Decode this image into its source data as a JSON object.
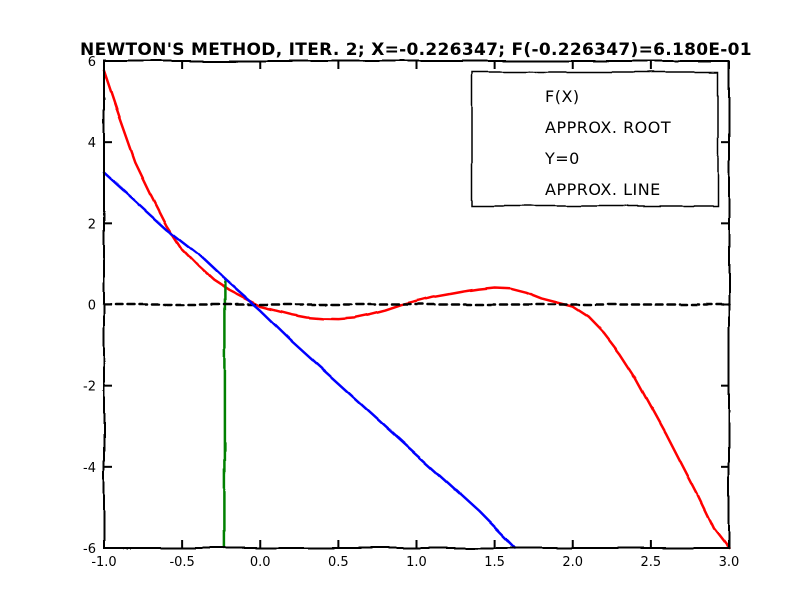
{
  "chart_data": {
    "type": "line",
    "title": "NEWTON'S METHOD, ITER. 2; x=-0.226347; f(-0.226347)=6.180E-01",
    "xlim": [
      -1.0,
      3.0
    ],
    "ylim": [
      -6,
      6
    ],
    "x_ticks": [
      "-1.0",
      "-0.5",
      "0.0",
      "0.5",
      "1.0",
      "1.5",
      "2.0",
      "2.5",
      "3.0"
    ],
    "y_ticks": [
      "-6",
      "-4",
      "-2",
      "0",
      "2",
      "4",
      "6"
    ],
    "legend_position": "top-right",
    "grid": false,
    "series": [
      {
        "name": "f(x)",
        "color": "#ff0000",
        "style": "solid",
        "x": [
          -1.0,
          -0.9,
          -0.8,
          -0.7,
          -0.6,
          -0.5,
          -0.4,
          -0.3,
          -0.2,
          -0.1,
          0.0,
          0.1,
          0.2,
          0.3,
          0.4,
          0.5,
          0.6,
          0.7,
          0.8,
          0.9,
          1.0,
          1.1,
          1.2,
          1.3,
          1.4,
          1.5,
          1.6,
          1.7,
          1.8,
          1.9,
          2.0,
          2.1,
          2.2,
          2.3,
          2.4,
          2.5,
          2.6,
          2.7,
          2.8,
          2.9,
          3.0
        ],
        "y": [
          5.75,
          4.6,
          3.5,
          2.7,
          1.95,
          1.35,
          0.95,
          0.6,
          0.35,
          0.15,
          -0.05,
          -0.15,
          -0.25,
          -0.32,
          -0.35,
          -0.36,
          -0.33,
          -0.25,
          -0.15,
          -0.02,
          0.08,
          0.18,
          0.25,
          0.32,
          0.38,
          0.42,
          0.4,
          0.3,
          0.15,
          0.05,
          -0.05,
          -0.3,
          -0.7,
          -1.2,
          -1.8,
          -2.5,
          -3.2,
          -3.95,
          -4.7,
          -5.5,
          -6.0
        ]
      },
      {
        "name": "approx. root",
        "color": "#008000",
        "style": "solid",
        "x": [
          -0.226347,
          -0.226347
        ],
        "y": [
          -6,
          0.62
        ]
      },
      {
        "name": "y=0",
        "color": "#000000",
        "style": "dashed",
        "x": [
          -1.0,
          3.0
        ],
        "y": [
          0,
          0
        ]
      },
      {
        "name": "approx. line",
        "color": "#0000ff",
        "style": "solid",
        "x": [
          -1.0,
          -0.8,
          -0.6,
          -0.4,
          -0.226347,
          0.0,
          0.2,
          0.4,
          0.6,
          0.8,
          1.0,
          1.2,
          1.4,
          1.63
        ],
        "y": [
          3.25,
          2.55,
          1.85,
          1.25,
          0.62,
          -0.15,
          -0.9,
          -1.6,
          -2.3,
          -3.0,
          -3.7,
          -4.4,
          -5.1,
          -6.0
        ]
      }
    ]
  }
}
